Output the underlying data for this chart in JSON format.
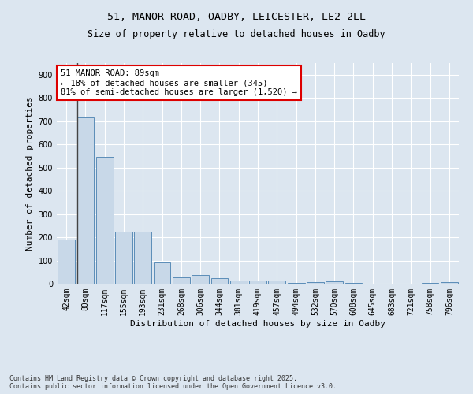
{
  "title_line1": "51, MANOR ROAD, OADBY, LEICESTER, LE2 2LL",
  "title_line2": "Size of property relative to detached houses in Oadby",
  "xlabel": "Distribution of detached houses by size in Oadby",
  "ylabel": "Number of detached properties",
  "footnote": "Contains HM Land Registry data © Crown copyright and database right 2025.\nContains public sector information licensed under the Open Government Licence v3.0.",
  "categories": [
    "42sqm",
    "80sqm",
    "117sqm",
    "155sqm",
    "193sqm",
    "231sqm",
    "268sqm",
    "306sqm",
    "344sqm",
    "381sqm",
    "419sqm",
    "457sqm",
    "494sqm",
    "532sqm",
    "570sqm",
    "608sqm",
    "645sqm",
    "683sqm",
    "721sqm",
    "758sqm",
    "796sqm"
  ],
  "values": [
    190,
    715,
    545,
    225,
    225,
    90,
    28,
    38,
    25,
    12,
    12,
    12,
    3,
    8,
    10,
    5,
    0,
    0,
    0,
    3,
    8
  ],
  "bar_color": "#c8d8e8",
  "bar_edge_color": "#5b8db8",
  "annotation_text": "51 MANOR ROAD: 89sqm\n← 18% of detached houses are smaller (345)\n81% of semi-detached houses are larger (1,520) →",
  "annotation_box_color": "#dd0000",
  "vline_color": "#444444",
  "ylim": [
    0,
    950
  ],
  "yticks": [
    0,
    100,
    200,
    300,
    400,
    500,
    600,
    700,
    800,
    900
  ],
  "background_color": "#dce6f0",
  "plot_background": "#dce6f0",
  "grid_color": "#ffffff",
  "title_fontsize": 9.5,
  "subtitle_fontsize": 8.5,
  "axis_label_fontsize": 8,
  "tick_fontsize": 7,
  "annotation_fontsize": 7.5
}
